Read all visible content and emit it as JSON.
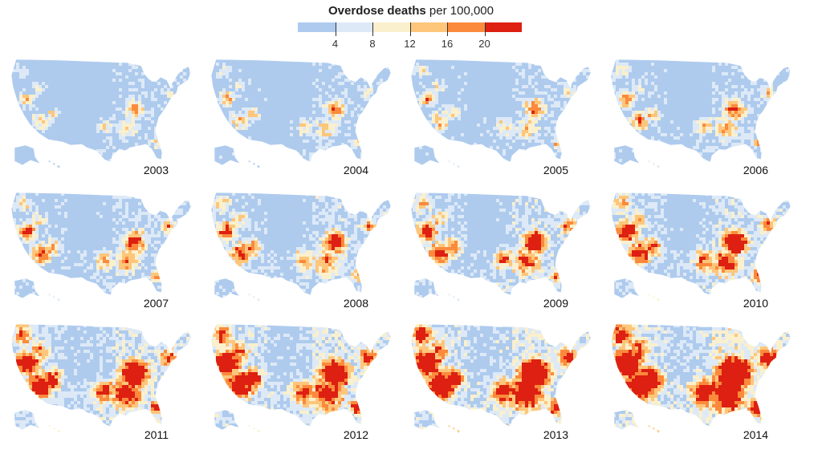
{
  "legend": {
    "title": "Overdose deaths",
    "subtitle": "per 100,000",
    "ticks": [
      "4",
      "8",
      "12",
      "16",
      "20"
    ],
    "colors": [
      "#aecbee",
      "#dde9f7",
      "#faf0cd",
      "#fdc67a",
      "#fb8a3c",
      "#dd2011"
    ]
  },
  "maps": [
    {
      "year": "2003",
      "level": 0.12
    },
    {
      "year": "2004",
      "level": 0.16
    },
    {
      "year": "2005",
      "level": 0.2
    },
    {
      "year": "2006",
      "level": 0.26
    },
    {
      "year": "2007",
      "level": 0.33
    },
    {
      "year": "2008",
      "level": 0.38
    },
    {
      "year": "2009",
      "level": 0.44
    },
    {
      "year": "2010",
      "level": 0.5
    },
    {
      "year": "2011",
      "level": 0.6
    },
    {
      "year": "2012",
      "level": 0.67
    },
    {
      "year": "2013",
      "level": 0.74
    },
    {
      "year": "2014",
      "level": 0.82
    }
  ]
}
